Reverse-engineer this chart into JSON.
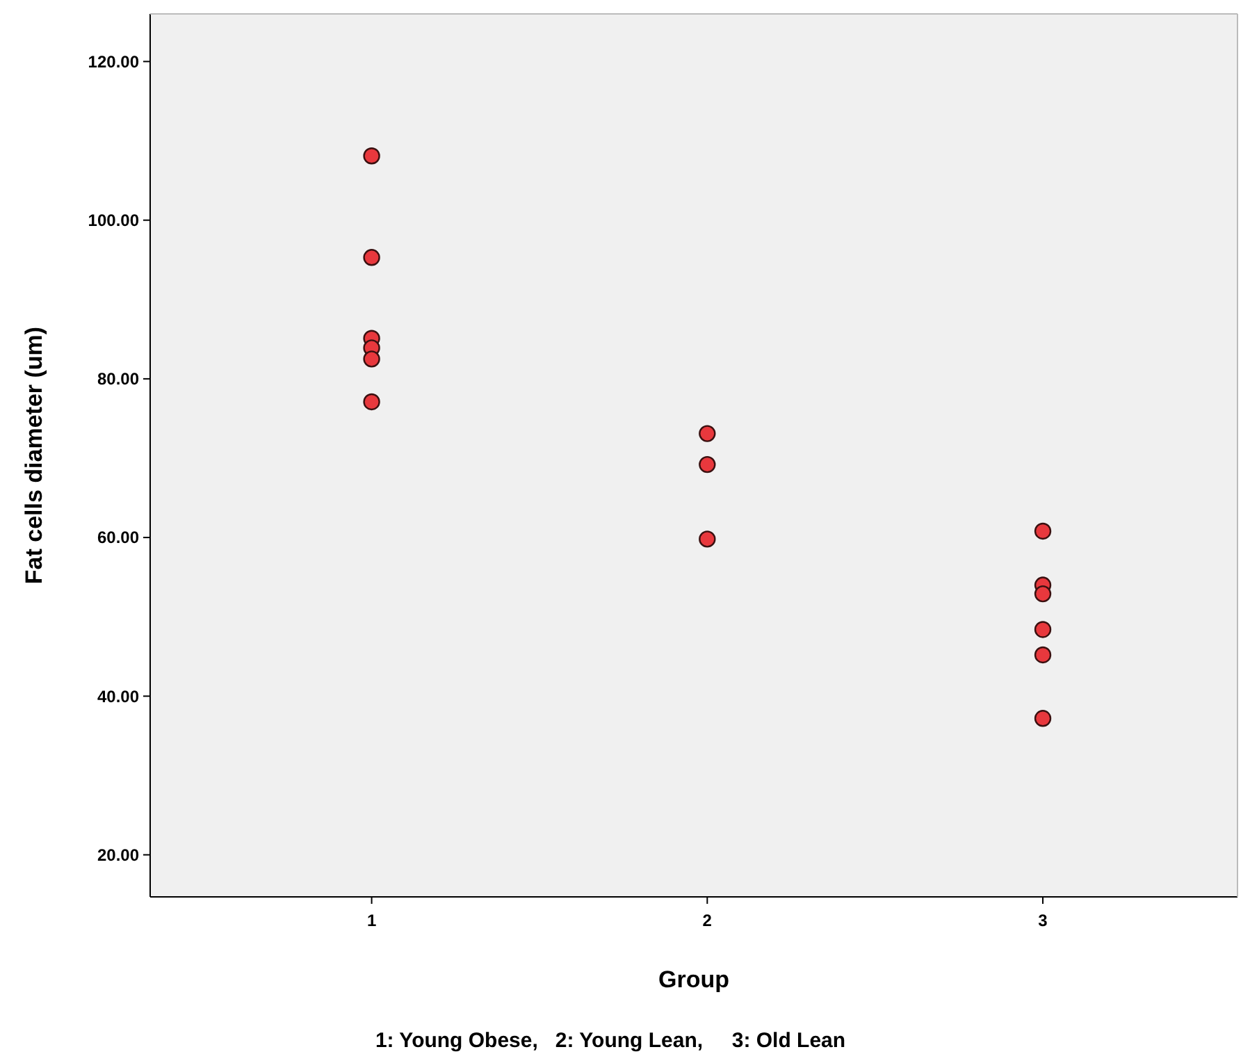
{
  "chart_data": {
    "type": "scatter",
    "xlabel": "Group",
    "ylabel": "Fat cells diameter (um)",
    "annotations": [
      "1: Young Obese,   2: Young Lean,     3: Old Lean"
    ],
    "series": [
      {
        "color": "#e8383d",
        "x": [
          1,
          1,
          1,
          1,
          1,
          1,
          2,
          2,
          2,
          3,
          3,
          3,
          3,
          3,
          3
        ],
        "values": [
          108.1,
          95.3,
          85.1,
          83.9,
          82.5,
          77.1,
          73.1,
          69.2,
          59.8,
          60.8,
          54.0,
          52.9,
          48.4,
          45.2,
          37.2
        ]
      }
    ],
    "xlim": [
      0.34,
      3.58
    ],
    "ylim": [
      14.7,
      126
    ],
    "xticks": [
      1,
      2,
      3
    ],
    "yticks": [
      {
        "value": 20,
        "label": "20.00"
      },
      {
        "value": 40,
        "label": "40.00"
      },
      {
        "value": 60,
        "label": "60.00"
      },
      {
        "value": 80,
        "label": "80.00"
      },
      {
        "value": 100,
        "label": "100.00"
      },
      {
        "value": 120,
        "label": "120.00"
      }
    ],
    "marker": "circle",
    "grid": false
  }
}
